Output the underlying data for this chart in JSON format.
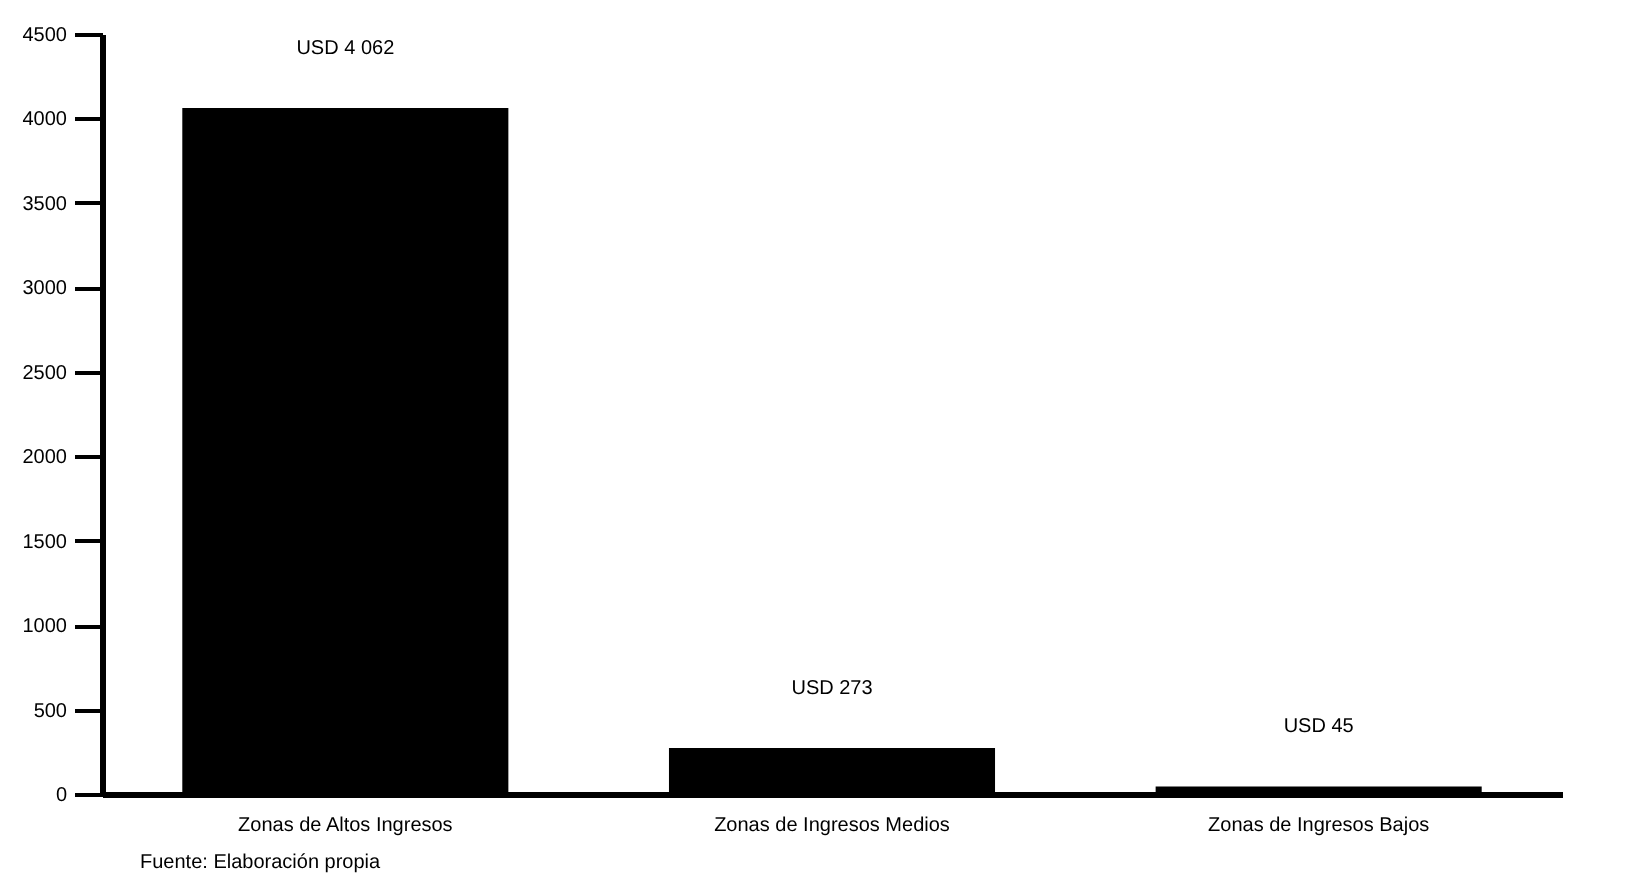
{
  "chart_data": {
    "type": "bar",
    "categories": [
      "Zonas de Altos Ingresos",
      "Zonas de Ingresos Medios",
      "Zonas de Ingresos Bajos"
    ],
    "values": [
      4062,
      273,
      45
    ],
    "value_labels": [
      "USD 4 062",
      "USD 273",
      "USD 45"
    ],
    "color": "#000000",
    "ylim": [
      0,
      4500
    ],
    "yticks": [
      0,
      500,
      1000,
      1500,
      2000,
      2500,
      3000,
      3500,
      4000,
      4500
    ],
    "grid": false,
    "annotations": [
      "Fuente: Elaboración propia"
    ]
  }
}
